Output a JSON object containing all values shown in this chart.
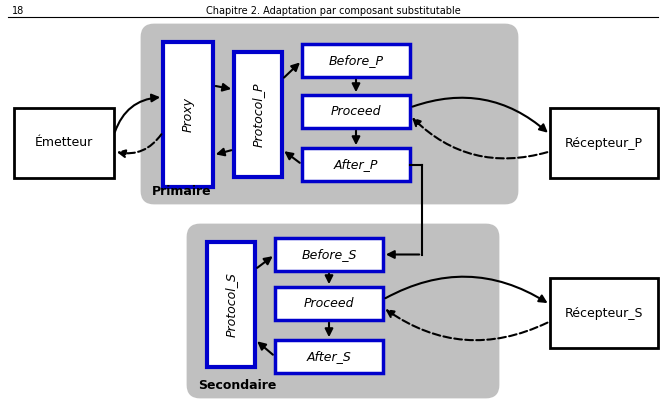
{
  "bg_color": "#ffffff",
  "gray_color": "#c0c0c0",
  "blue_color": "#0000cc",
  "box_fill": "#ffffff",
  "black": "#000000",
  "primary_label": "Primaire",
  "secondary_label": "Secondaire",
  "emetteur_label": "Émetteur",
  "recepteur_p_label": "Récepteur_P",
  "recepteur_s_label": "Récepteur_S",
  "proxy_label": "Proxy",
  "protocol_p_label": "Protocol_P",
  "before_p_label": "Before_P",
  "proceed_p_label": "Proceed",
  "after_p_label": "After_P",
  "protocol_s_label": "Protocol_S",
  "before_s_label": "Before_S",
  "proceed_s_label": "Proceed",
  "after_s_label": "After_S",
  "header_line": "Chapitre 2. Adaptation par composant substitutable",
  "page_num": "18"
}
